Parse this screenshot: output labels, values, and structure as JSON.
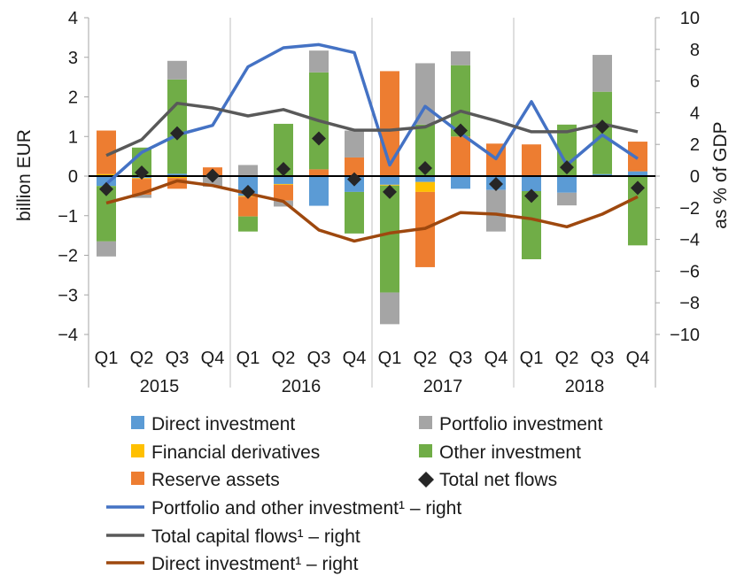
{
  "chart_data": {
    "type": "bar",
    "ylabel": "billion  EUR",
    "y2label": "as % of GDP",
    "ylim": [
      -4,
      4
    ],
    "y2lim": [
      -10,
      10
    ],
    "yticks": [
      4,
      3,
      2,
      1,
      0,
      -1,
      -2,
      -3,
      -4
    ],
    "yticks_text": [
      "4",
      "3",
      "2",
      "1",
      "0",
      "−1",
      "−2",
      "−3",
      "−4"
    ],
    "y2ticks": [
      10,
      8,
      6,
      4,
      2,
      0,
      -2,
      -4,
      -6,
      -8,
      -10
    ],
    "y2ticks_text": [
      "10",
      "8",
      "6",
      "4",
      "2",
      "0",
      "−2",
      "−4",
      "−6",
      "−8",
      "−10"
    ],
    "grid": "vertical separators between years",
    "categories": [
      "Q1",
      "Q2",
      "Q3",
      "Q4",
      "Q1",
      "Q2",
      "Q3",
      "Q4",
      "Q1",
      "Q2",
      "Q3",
      "Q4",
      "Q1",
      "Q2",
      "Q3",
      "Q4"
    ],
    "years": [
      "2015",
      "2016",
      "2017",
      "2018"
    ],
    "stacked_series": [
      {
        "name": "Direct investment",
        "color": "#5b9bd5",
        "values": [
          -0.25,
          -0.05,
          0.06,
          -0.02,
          -0.5,
          -0.2,
          -0.75,
          -0.4,
          -0.22,
          -0.15,
          -0.32,
          -0.35,
          -0.38,
          -0.42,
          0.05,
          0.12
        ]
      },
      {
        "name": "Financial derivatives",
        "color": "#ffc000",
        "values": [
          0.05,
          -0.02,
          -0.05,
          0.0,
          -0.02,
          -0.02,
          0.02,
          0.02,
          -0.02,
          -0.25,
          0.0,
          0.02,
          0.0,
          0.0,
          0.0,
          0.0
        ]
      },
      {
        "name": "Reserve assets",
        "color": "#ed7d31",
        "values": [
          1.1,
          -0.4,
          -0.27,
          0.22,
          -0.5,
          -0.4,
          0.15,
          0.45,
          2.65,
          -1.9,
          1.0,
          0.8,
          0.8,
          0.0,
          0.0,
          0.75
        ]
      },
      {
        "name": "Other investment",
        "color": "#70ad47",
        "values": [
          -1.4,
          0.72,
          2.38,
          0.0,
          -0.38,
          1.32,
          2.45,
          -1.05,
          -2.7,
          1.3,
          1.8,
          0.0,
          -1.72,
          1.3,
          2.08,
          -1.75
        ]
      },
      {
        "name": "Portfolio investment",
        "color": "#a5a5a5",
        "values": [
          -0.38,
          -0.08,
          0.47,
          -0.25,
          0.28,
          -0.15,
          0.55,
          0.68,
          -0.8,
          1.55,
          0.35,
          -1.05,
          0.0,
          -0.32,
          0.93,
          0.0
        ]
      }
    ],
    "net_flows": {
      "name": "Total net flows",
      "color": "#262626",
      "values": [
        -0.33,
        0.09,
        1.08,
        0.01,
        -0.4,
        0.18,
        0.95,
        -0.08,
        -0.4,
        0.2,
        1.15,
        -0.2,
        -0.5,
        0.22,
        1.25,
        -0.3
      ]
    },
    "line_series": [
      {
        "name": "Portfolio and other investment¹ – right",
        "color": "#4472c4",
        "values": [
          -0.5,
          1.5,
          2.6,
          3.2,
          6.9,
          8.1,
          8.3,
          7.8,
          0.7,
          4.4,
          2.7,
          1.1,
          4.7,
          0.7,
          2.6,
          1.1
        ]
      },
      {
        "name": "Total capital flows¹ – right",
        "color": "#595959",
        "values": [
          1.3,
          2.3,
          4.6,
          4.3,
          3.8,
          4.2,
          3.5,
          2.9,
          2.9,
          3.1,
          4.1,
          3.5,
          2.8,
          2.8,
          3.3,
          2.8
        ]
      },
      {
        "name": "Direct investment¹ – right",
        "color": "#9e480e",
        "values": [
          -1.7,
          -1.1,
          -0.3,
          -0.6,
          -1.1,
          -1.6,
          -3.4,
          -4.1,
          -3.6,
          -3.3,
          -2.3,
          -2.4,
          -2.7,
          -3.2,
          -2.4,
          -1.3
        ]
      }
    ]
  },
  "legend": {
    "direct": "Direct investment",
    "portfolio": "Portfolio investment",
    "derivatives": "Financial derivatives",
    "other": "Other investment",
    "reserve": "Reserve assets",
    "net": "Total net flows",
    "line_portfolio_other": "Portfolio and other investment¹ – right",
    "line_total": "Total capital flows¹ – right",
    "line_direct": "Direct investment¹ – right"
  }
}
